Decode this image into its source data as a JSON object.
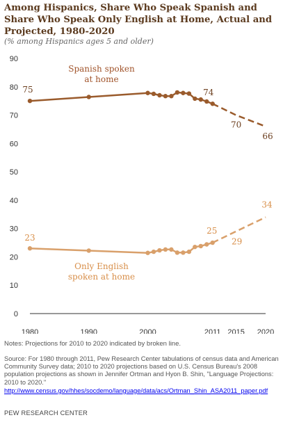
{
  "title": "Among Hispanics, Share Who Speak Spanish and Share Who Speak Only English at Home, Actual and Projected, 1980-2020",
  "subtitle": "(% among Hispanics ages 5 and older)",
  "notes": "Notes: Projections for 2010 to 2020 indicated by broken line.",
  "source": "Source: For 1980 through 2011, Pew Research Center tabulations of census data and American Community Survey  data; 2010 to 2020 projections based on U.S. Census Bureau's 2008 population projections as shown in Jennifer Ortman and Hyon B. Shin, \"Language Projections: 2010 to 2020.\"",
  "source_link": "http://www.census.gov/hhes/socdemo/language/data/acs/Ortman_Shin_ASA2011_paper.pdf",
  "credit": "PEW RESEARCH CENTER",
  "colors": {
    "spanish": "#9a5b2c",
    "english": "#d9a06b",
    "spanish_label": "#a0532a",
    "english_label": "#d88f4a",
    "axis": "#333333"
  },
  "chart_data": {
    "type": "line",
    "xlim": [
      1980,
      2020
    ],
    "ylim": [
      0,
      90
    ],
    "x_ticks": [
      "1980",
      "1990",
      "2000",
      "2011",
      "2015",
      "2020"
    ],
    "y_ticks": [
      "0",
      "10",
      "20",
      "30",
      "40",
      "50",
      "60",
      "70",
      "80",
      "90"
    ],
    "grid": false,
    "series": [
      {
        "name": "Spanish spoken at home",
        "label_lines": [
          "Spanish spoken",
          "at home"
        ],
        "color": "#9a5b2c",
        "actual": [
          {
            "x": 1980,
            "y": 75
          },
          {
            "x": 1990,
            "y": 76.4
          },
          {
            "x": 2000,
            "y": 77.8
          },
          {
            "x": 2001,
            "y": 77.5
          },
          {
            "x": 2002,
            "y": 77
          },
          {
            "x": 2003,
            "y": 76.7
          },
          {
            "x": 2004,
            "y": 76.7
          },
          {
            "x": 2005,
            "y": 78
          },
          {
            "x": 2006,
            "y": 77.8
          },
          {
            "x": 2007,
            "y": 77.6
          },
          {
            "x": 2008,
            "y": 75.8
          },
          {
            "x": 2009,
            "y": 75.5
          },
          {
            "x": 2010,
            "y": 74.8
          },
          {
            "x": 2011,
            "y": 74
          }
        ],
        "projected": [
          {
            "x": 2011,
            "y": 74
          },
          {
            "x": 2015,
            "y": 70
          },
          {
            "x": 2020,
            "y": 66
          }
        ],
        "data_labels": [
          {
            "x": 1980,
            "y": 75,
            "text": "75"
          },
          {
            "x": 2011,
            "y": 74,
            "text": "74"
          },
          {
            "x": 2015,
            "y": 70,
            "text": "70"
          },
          {
            "x": 2020,
            "y": 66,
            "text": "66"
          }
        ]
      },
      {
        "name": "Only English spoken at home",
        "label_lines": [
          "Only English",
          "spoken at home"
        ],
        "color": "#d9a06b",
        "actual": [
          {
            "x": 1980,
            "y": 23
          },
          {
            "x": 1990,
            "y": 22.2
          },
          {
            "x": 2000,
            "y": 21.4
          },
          {
            "x": 2001,
            "y": 21.8
          },
          {
            "x": 2002,
            "y": 22.3
          },
          {
            "x": 2003,
            "y": 22.6
          },
          {
            "x": 2004,
            "y": 22.6
          },
          {
            "x": 2005,
            "y": 21.5
          },
          {
            "x": 2006,
            "y": 21.5
          },
          {
            "x": 2007,
            "y": 21.8
          },
          {
            "x": 2008,
            "y": 23.5
          },
          {
            "x": 2009,
            "y": 23.8
          },
          {
            "x": 2010,
            "y": 24.4
          },
          {
            "x": 2011,
            "y": 25
          }
        ],
        "projected": [
          {
            "x": 2011,
            "y": 25
          },
          {
            "x": 2015,
            "y": 29
          },
          {
            "x": 2020,
            "y": 34
          }
        ],
        "data_labels": [
          {
            "x": 1980,
            "y": 23,
            "text": "23"
          },
          {
            "x": 2011,
            "y": 25,
            "text": "25"
          },
          {
            "x": 2015,
            "y": 29,
            "text": "29"
          },
          {
            "x": 2020,
            "y": 34,
            "text": "34"
          }
        ]
      }
    ]
  }
}
